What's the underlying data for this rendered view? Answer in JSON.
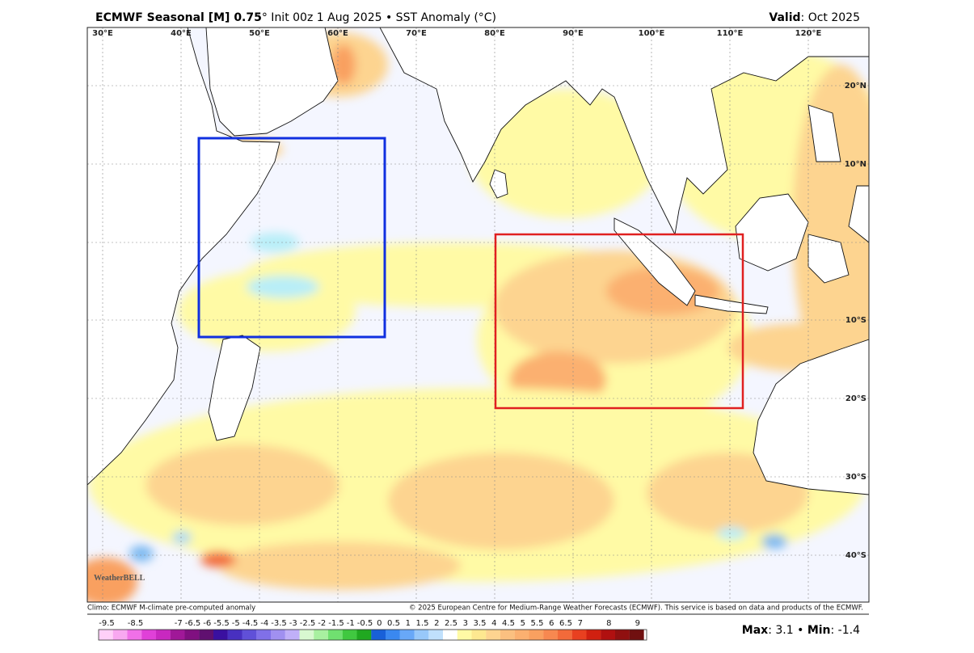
{
  "header": {
    "title_bold": "ECMWF Seasonal [M] 0.75",
    "title_rest": "° Init 00z 1 Aug 2025 • SST Anomaly (°C)",
    "valid_label": "Valid",
    "valid_value": ": Oct 2025"
  },
  "map": {
    "lon_labels": [
      "30°E",
      "40°E",
      "50°E",
      "60°E",
      "70°E",
      "80°E",
      "90°E",
      "100°E",
      "110°E",
      "120°E"
    ],
    "lat_labels": [
      "20°N",
      "10°N",
      "10°S",
      "20°S",
      "30°S",
      "40°S"
    ],
    "logo": "WeatherBELL"
  },
  "footer": {
    "climo": "Climo: ECMWF M-climate pre-computed anomaly",
    "copyright": "© 2025 European Centre for Medium-Range Weather Forecasts (ECMWF). This service is based on data and products of the ECMWF."
  },
  "colorbar": {
    "labels": [
      -9.5,
      -8.5,
      -7,
      -6.5,
      -6,
      -5.5,
      -5,
      -4.5,
      -4,
      -3.5,
      -3,
      -2.5,
      -2,
      -1.5,
      -1,
      -0.5,
      0,
      0.5,
      1,
      1.5,
      2,
      2.5,
      3,
      3.5,
      4,
      4.5,
      5,
      5.5,
      6,
      6.5,
      7,
      8,
      9
    ]
  },
  "stats": {
    "max_label": "Max",
    "max_value": ": 3.1",
    "separator": " • ",
    "min_label": "Min",
    "min_value": ": -1.4"
  }
}
